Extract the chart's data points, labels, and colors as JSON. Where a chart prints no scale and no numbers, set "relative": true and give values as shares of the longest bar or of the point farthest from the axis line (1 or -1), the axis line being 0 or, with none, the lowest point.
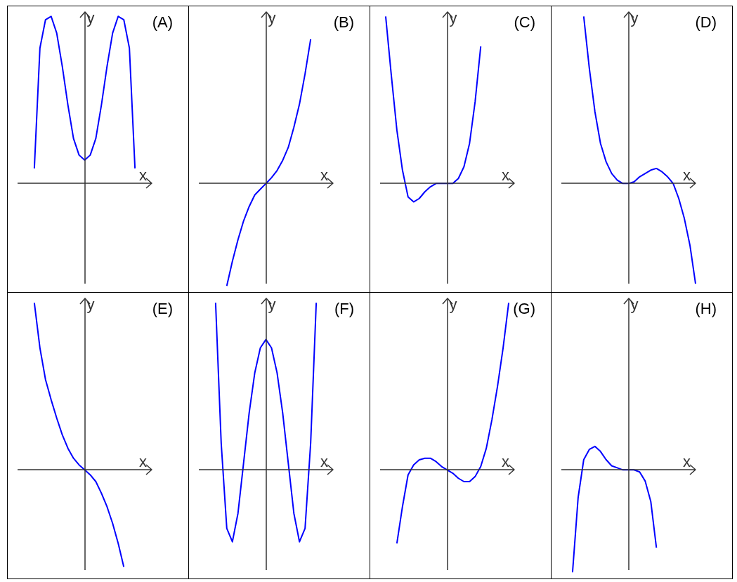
{
  "chart_data": [
    {
      "type": "line",
      "title": "(A)",
      "xlabel": "x",
      "ylabel": "y",
      "relative": true,
      "tick_labels": false,
      "color": "#0000ff",
      "categories": [
        null,
        null,
        null,
        null,
        null,
        null,
        null,
        null,
        null,
        null,
        null,
        null,
        null,
        null,
        null,
        null,
        null,
        null,
        null,
        null,
        null,
        null,
        null,
        null,
        null
      ],
      "values": [
        null,
        null,
        null,
        0.09,
        0.81,
        0.98,
        1,
        0.9,
        0.7,
        0.47,
        0.27,
        0.17,
        0.14,
        0.17,
        0.27,
        0.47,
        0.7,
        0.9,
        1,
        0.98,
        0.81,
        0.09,
        null,
        null,
        null
      ]
    },
    {
      "type": "line",
      "title": "(B)",
      "xlabel": "x",
      "ylabel": "y",
      "relative": true,
      "tick_labels": false,
      "color": "#0000ff",
      "categories": [
        null,
        null,
        null,
        null,
        null,
        null,
        null,
        null,
        null,
        null,
        null,
        null,
        null,
        null,
        null,
        null,
        null,
        null,
        null,
        null,
        null,
        null,
        null,
        null,
        null
      ],
      "values": [
        null,
        null,
        null,
        null,
        null,
        -0.71,
        -0.54,
        -0.39,
        -0.26,
        -0.16,
        -0.08,
        -0.04,
        0,
        0.04,
        0.09,
        0.16,
        0.25,
        0.39,
        0.55,
        0.76,
        1,
        null,
        null,
        null,
        null
      ]
    },
    {
      "type": "line",
      "title": "(C)",
      "xlabel": "x",
      "ylabel": "y",
      "relative": true,
      "tick_labels": false,
      "color": "#0000ff",
      "categories": [
        null,
        null,
        null,
        null,
        null,
        null,
        null,
        null,
        null,
        null,
        null,
        null,
        null,
        null,
        null,
        null,
        null,
        null,
        null,
        null,
        null,
        null,
        null,
        null,
        null
      ],
      "values": [
        null,
        1,
        0.65,
        0.32,
        0.08,
        -0.08,
        -0.11,
        -0.09,
        -0.05,
        -0.02,
        0,
        0,
        0,
        0,
        0.03,
        0.1,
        0.24,
        0.49,
        0.82,
        null,
        null,
        null,
        null,
        null,
        null
      ]
    },
    {
      "type": "line",
      "title": "(D)",
      "xlabel": "x",
      "ylabel": "y",
      "relative": true,
      "tick_labels": false,
      "color": "#0000ff",
      "categories": [
        null,
        null,
        null,
        null,
        null,
        null,
        null,
        null,
        null,
        null,
        null,
        null,
        null,
        null,
        null,
        null,
        null,
        null,
        null,
        null,
        null,
        null,
        null,
        null,
        null
      ],
      "values": [
        null,
        null,
        null,
        null,
        1,
        0.69,
        0.43,
        0.24,
        0.13,
        0.06,
        0.02,
        0,
        0,
        0.01,
        0.04,
        0.06,
        0.08,
        0.09,
        0.07,
        0.04,
        0,
        -0.09,
        -0.21,
        -0.37,
        -0.6
      ]
    },
    {
      "type": "line",
      "title": "(E)",
      "xlabel": "x",
      "ylabel": "y",
      "relative": true,
      "tick_labels": false,
      "color": "#0000ff",
      "categories": [
        null,
        null,
        null,
        null,
        null,
        null,
        null,
        null,
        null,
        null,
        null,
        null,
        null,
        null,
        null,
        null,
        null,
        null,
        null,
        null,
        null,
        null,
        null,
        null,
        null
      ],
      "values": [
        null,
        null,
        null,
        1,
        0.73,
        0.54,
        0.42,
        0.31,
        0.21,
        0.13,
        0.07,
        0.03,
        0,
        -0.03,
        -0.07,
        -0.14,
        -0.22,
        -0.32,
        -0.44,
        -0.58,
        null,
        null,
        null,
        null,
        null
      ]
    },
    {
      "type": "line",
      "title": "(F)",
      "xlabel": "x",
      "ylabel": "y",
      "relative": true,
      "tick_labels": false,
      "color": "#0000ff",
      "categories": [
        null,
        null,
        null,
        null,
        null,
        null,
        null,
        null,
        null,
        null,
        null,
        null,
        null,
        null,
        null,
        null,
        null,
        null,
        null,
        null,
        null,
        null,
        null,
        null,
        null
      ],
      "values": [
        null,
        null,
        null,
        1,
        0.16,
        -0.35,
        -0.43,
        -0.26,
        0.04,
        0.34,
        0.58,
        0.73,
        0.78,
        0.73,
        0.58,
        0.34,
        0.04,
        -0.26,
        -0.43,
        -0.35,
        0.16,
        1,
        null,
        null,
        null
      ]
    },
    {
      "type": "line",
      "title": "(G)",
      "xlabel": "x",
      "ylabel": "y",
      "relative": true,
      "tick_labels": false,
      "color": "#0000ff",
      "categories": [
        null,
        null,
        null,
        null,
        null,
        null,
        null,
        null,
        null,
        null,
        null,
        null,
        null,
        null,
        null,
        null,
        null,
        null,
        null,
        null,
        null,
        null,
        null,
        null,
        null
      ],
      "values": [
        null,
        null,
        null,
        -0.44,
        -0.22,
        -0.03,
        0.03,
        0.06,
        0.07,
        0.07,
        0.05,
        0.02,
        0,
        -0.02,
        -0.05,
        -0.07,
        -0.07,
        -0.04,
        0.02,
        0.13,
        0.3,
        0.5,
        0.73,
        1,
        null
      ]
    },
    {
      "type": "line",
      "title": "(H)",
      "xlabel": "x",
      "ylabel": "y",
      "relative": true,
      "tick_labels": false,
      "color": "#0000ff",
      "categories": [
        null,
        null,
        null,
        null,
        null,
        null,
        null,
        null,
        null,
        null,
        null,
        null,
        null,
        null,
        null,
        null,
        null,
        null,
        null,
        null,
        null,
        null,
        null,
        null,
        null
      ],
      "values": [
        null,
        null,
        -1,
        -0.27,
        0.1,
        0.2,
        0.23,
        0.18,
        0.1,
        0.04,
        0.02,
        0,
        0,
        0,
        -0.02,
        -0.11,
        -0.31,
        -0.76,
        null,
        null,
        null,
        null,
        null,
        null,
        null
      ]
    }
  ]
}
